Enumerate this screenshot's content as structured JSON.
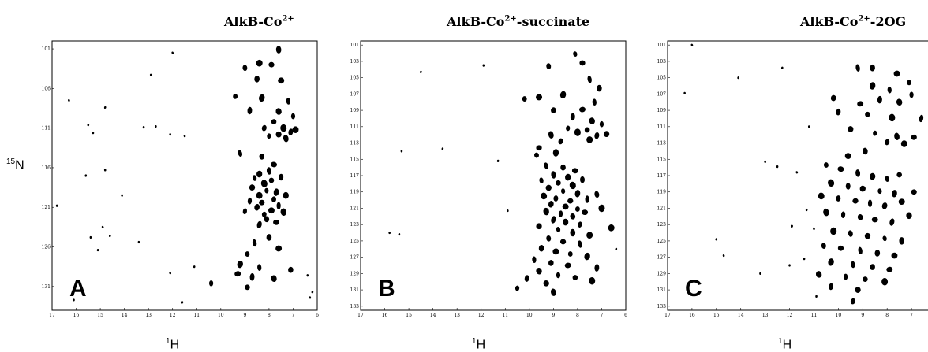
{
  "chart_data": [
    {
      "type": "scatter",
      "title": "AlkB-Co",
      "title_sup": "2+",
      "panel_label": "A",
      "xlabel": "H",
      "xlabel_sup": "1",
      "ylabel": "N",
      "ylabel_sup": "15",
      "xlim": [
        17,
        6
      ],
      "ylim": [
        100,
        134
      ],
      "x_ticks": [
        17,
        16,
        15,
        14,
        13,
        12,
        11,
        10,
        9,
        8,
        7,
        6
      ],
      "y_ticks": [
        101,
        106,
        111,
        116,
        121,
        126,
        131
      ],
      "peaks": [
        {
          "x": 12.0,
          "y": 101.5
        },
        {
          "x": 7.6,
          "y": 101.1
        },
        {
          "x": 8.4,
          "y": 102.8
        },
        {
          "x": 9.0,
          "y": 103.4
        },
        {
          "x": 7.9,
          "y": 103.0
        },
        {
          "x": 12.9,
          "y": 104.3
        },
        {
          "x": 8.5,
          "y": 104.8
        },
        {
          "x": 7.5,
          "y": 105.0
        },
        {
          "x": 9.4,
          "y": 107.0
        },
        {
          "x": 8.3,
          "y": 107.2
        },
        {
          "x": 7.2,
          "y": 107.6
        },
        {
          "x": 14.8,
          "y": 108.4
        },
        {
          "x": 16.3,
          "y": 107.5
        },
        {
          "x": 8.8,
          "y": 108.8
        },
        {
          "x": 7.6,
          "y": 108.9
        },
        {
          "x": 7.0,
          "y": 109.5
        },
        {
          "x": 7.8,
          "y": 110.2
        },
        {
          "x": 7.4,
          "y": 111.0
        },
        {
          "x": 7.1,
          "y": 111.5
        },
        {
          "x": 7.6,
          "y": 111.8
        },
        {
          "x": 8.0,
          "y": 112.0
        },
        {
          "x": 7.3,
          "y": 112.3
        },
        {
          "x": 6.9,
          "y": 111.2
        },
        {
          "x": 8.2,
          "y": 111.0
        },
        {
          "x": 12.1,
          "y": 111.8
        },
        {
          "x": 12.7,
          "y": 110.8
        },
        {
          "x": 15.3,
          "y": 111.6
        },
        {
          "x": 15.5,
          "y": 110.6
        },
        {
          "x": 11.5,
          "y": 112.0
        },
        {
          "x": 13.2,
          "y": 110.9
        },
        {
          "x": 9.2,
          "y": 114.2
        },
        {
          "x": 8.3,
          "y": 114.6
        },
        {
          "x": 7.8,
          "y": 115.6
        },
        {
          "x": 8.0,
          "y": 116.4
        },
        {
          "x": 8.4,
          "y": 116.8
        },
        {
          "x": 8.6,
          "y": 117.3
        },
        {
          "x": 7.9,
          "y": 117.6
        },
        {
          "x": 8.2,
          "y": 118.0
        },
        {
          "x": 7.5,
          "y": 117.2
        },
        {
          "x": 8.7,
          "y": 118.5
        },
        {
          "x": 8.1,
          "y": 118.9
        },
        {
          "x": 7.7,
          "y": 119.1
        },
        {
          "x": 8.4,
          "y": 119.5
        },
        {
          "x": 7.8,
          "y": 120.0
        },
        {
          "x": 8.3,
          "y": 120.4
        },
        {
          "x": 7.6,
          "y": 120.8
        },
        {
          "x": 8.5,
          "y": 121.0
        },
        {
          "x": 7.9,
          "y": 121.4
        },
        {
          "x": 8.2,
          "y": 121.9
        },
        {
          "x": 7.4,
          "y": 121.6
        },
        {
          "x": 8.8,
          "y": 120.2
        },
        {
          "x": 8.1,
          "y": 122.5
        },
        {
          "x": 7.7,
          "y": 122.9
        },
        {
          "x": 8.4,
          "y": 123.2
        },
        {
          "x": 7.3,
          "y": 119.5
        },
        {
          "x": 9.0,
          "y": 121.5
        },
        {
          "x": 14.8,
          "y": 116.3
        },
        {
          "x": 15.6,
          "y": 117.0
        },
        {
          "x": 14.1,
          "y": 119.5
        },
        {
          "x": 16.8,
          "y": 120.8
        },
        {
          "x": 14.9,
          "y": 123.5
        },
        {
          "x": 15.4,
          "y": 124.8
        },
        {
          "x": 14.6,
          "y": 124.6
        },
        {
          "x": 13.4,
          "y": 125.4
        },
        {
          "x": 15.1,
          "y": 126.4
        },
        {
          "x": 8.6,
          "y": 125.5
        },
        {
          "x": 8.0,
          "y": 124.8
        },
        {
          "x": 7.6,
          "y": 126.2
        },
        {
          "x": 8.9,
          "y": 126.9
        },
        {
          "x": 9.2,
          "y": 128.2
        },
        {
          "x": 8.4,
          "y": 128.6
        },
        {
          "x": 7.1,
          "y": 128.9
        },
        {
          "x": 9.3,
          "y": 129.4
        },
        {
          "x": 8.7,
          "y": 129.8
        },
        {
          "x": 7.8,
          "y": 130.0
        },
        {
          "x": 10.4,
          "y": 130.6
        },
        {
          "x": 8.9,
          "y": 131.1
        },
        {
          "x": 6.4,
          "y": 129.6
        },
        {
          "x": 6.2,
          "y": 131.7
        },
        {
          "x": 6.3,
          "y": 132.4
        },
        {
          "x": 11.1,
          "y": 128.5
        },
        {
          "x": 12.1,
          "y": 129.3
        },
        {
          "x": 16.1,
          "y": 132.7
        },
        {
          "x": 11.6,
          "y": 133.0
        }
      ]
    },
    {
      "type": "scatter",
      "title": "AlkB-Co",
      "title_sup": "2+",
      "title_suffix": "-succinate",
      "panel_label": "B",
      "xlabel": "H",
      "xlabel_sup": "1",
      "xlim": [
        17,
        6
      ],
      "ylim": [
        100.5,
        133.5
      ],
      "x_ticks": [
        17,
        16,
        15,
        14,
        13,
        12,
        11,
        10,
        9,
        8,
        7,
        6
      ],
      "y_ticks": [
        101,
        103,
        105,
        107,
        109,
        111,
        113,
        115,
        117,
        119,
        121,
        123,
        125,
        127,
        129,
        131,
        133
      ],
      "peaks": [
        {
          "x": 8.1,
          "y": 102.1
        },
        {
          "x": 11.9,
          "y": 103.5
        },
        {
          "x": 14.5,
          "y": 104.3
        },
        {
          "x": 9.2,
          "y": 103.6
        },
        {
          "x": 7.8,
          "y": 103.2
        },
        {
          "x": 7.5,
          "y": 105.2
        },
        {
          "x": 7.1,
          "y": 106.3
        },
        {
          "x": 9.6,
          "y": 107.4
        },
        {
          "x": 10.2,
          "y": 107.6
        },
        {
          "x": 8.6,
          "y": 107.1
        },
        {
          "x": 7.3,
          "y": 108.0
        },
        {
          "x": 9.0,
          "y": 109.0
        },
        {
          "x": 7.8,
          "y": 108.9
        },
        {
          "x": 8.2,
          "y": 109.8
        },
        {
          "x": 7.4,
          "y": 110.3
        },
        {
          "x": 7.0,
          "y": 110.7
        },
        {
          "x": 7.6,
          "y": 111.4
        },
        {
          "x": 8.0,
          "y": 111.7
        },
        {
          "x": 7.2,
          "y": 112.1
        },
        {
          "x": 6.8,
          "y": 111.9
        },
        {
          "x": 8.4,
          "y": 111.2
        },
        {
          "x": 9.1,
          "y": 112.0
        },
        {
          "x": 7.5,
          "y": 112.6
        },
        {
          "x": 8.7,
          "y": 112.8
        },
        {
          "x": 9.6,
          "y": 113.6
        },
        {
          "x": 13.6,
          "y": 113.7
        },
        {
          "x": 15.3,
          "y": 114.0
        },
        {
          "x": 11.3,
          "y": 115.2
        },
        {
          "x": 9.7,
          "y": 114.5
        },
        {
          "x": 8.9,
          "y": 114.2
        },
        {
          "x": 9.3,
          "y": 115.8
        },
        {
          "x": 8.6,
          "y": 116.0
        },
        {
          "x": 8.1,
          "y": 116.4
        },
        {
          "x": 9.0,
          "y": 116.9
        },
        {
          "x": 8.4,
          "y": 117.2
        },
        {
          "x": 9.5,
          "y": 117.6
        },
        {
          "x": 8.8,
          "y": 117.9
        },
        {
          "x": 8.2,
          "y": 118.2
        },
        {
          "x": 7.8,
          "y": 117.5
        },
        {
          "x": 9.2,
          "y": 118.5
        },
        {
          "x": 8.6,
          "y": 118.9
        },
        {
          "x": 8.0,
          "y": 119.2
        },
        {
          "x": 9.4,
          "y": 119.5
        },
        {
          "x": 8.9,
          "y": 119.8
        },
        {
          "x": 8.3,
          "y": 120.1
        },
        {
          "x": 7.6,
          "y": 119.9
        },
        {
          "x": 9.1,
          "y": 120.5
        },
        {
          "x": 8.5,
          "y": 120.8
        },
        {
          "x": 8.0,
          "y": 121.1
        },
        {
          "x": 9.3,
          "y": 121.4
        },
        {
          "x": 8.7,
          "y": 121.7
        },
        {
          "x": 8.2,
          "y": 122.0
        },
        {
          "x": 7.7,
          "y": 121.5
        },
        {
          "x": 9.0,
          "y": 122.4
        },
        {
          "x": 8.5,
          "y": 122.7
        },
        {
          "x": 7.9,
          "y": 123.0
        },
        {
          "x": 10.9,
          "y": 121.3
        },
        {
          "x": 7.0,
          "y": 121.0
        },
        {
          "x": 7.2,
          "y": 119.3
        },
        {
          "x": 9.6,
          "y": 123.2
        },
        {
          "x": 8.8,
          "y": 123.6
        },
        {
          "x": 8.2,
          "y": 124.0
        },
        {
          "x": 7.5,
          "y": 124.3
        },
        {
          "x": 9.2,
          "y": 124.7
        },
        {
          "x": 8.6,
          "y": 125.1
        },
        {
          "x": 7.9,
          "y": 125.4
        },
        {
          "x": 9.5,
          "y": 125.9
        },
        {
          "x": 8.9,
          "y": 126.3
        },
        {
          "x": 8.3,
          "y": 126.6
        },
        {
          "x": 7.6,
          "y": 126.9
        },
        {
          "x": 9.8,
          "y": 127.3
        },
        {
          "x": 9.1,
          "y": 127.7
        },
        {
          "x": 8.4,
          "y": 128.0
        },
        {
          "x": 7.2,
          "y": 128.3
        },
        {
          "x": 9.6,
          "y": 128.7
        },
        {
          "x": 8.8,
          "y": 129.2
        },
        {
          "x": 8.1,
          "y": 129.5
        },
        {
          "x": 7.4,
          "y": 129.9
        },
        {
          "x": 10.1,
          "y": 129.6
        },
        {
          "x": 9.3,
          "y": 130.2
        },
        {
          "x": 10.5,
          "y": 130.8
        },
        {
          "x": 9.0,
          "y": 131.3
        },
        {
          "x": 6.6,
          "y": 123.4
        },
        {
          "x": 6.4,
          "y": 126.0
        },
        {
          "x": 15.8,
          "y": 124.0
        },
        {
          "x": 15.4,
          "y": 124.2
        }
      ]
    },
    {
      "type": "scatter",
      "title": "AlkB-Co",
      "title_sup": "2+",
      "title_suffix": "-2OG",
      "panel_label": "C",
      "xlabel": "H",
      "xlabel_sup": "1",
      "xlim": [
        17,
        6
      ],
      "ylim": [
        100.5,
        133.5
      ],
      "x_ticks": [
        17,
        16,
        15,
        14,
        13,
        12,
        11,
        10,
        9,
        8,
        7
      ],
      "y_ticks": [
        101,
        103,
        105,
        107,
        109,
        111,
        113,
        115,
        117,
        119,
        121,
        123,
        125,
        127,
        129,
        131,
        133
      ],
      "peaks": [
        {
          "x": 16.0,
          "y": 101.0
        },
        {
          "x": 16.3,
          "y": 106.9
        },
        {
          "x": 14.1,
          "y": 105.0
        },
        {
          "x": 11.2,
          "y": 111.0
        },
        {
          "x": 12.3,
          "y": 103.8
        },
        {
          "x": 9.2,
          "y": 103.8
        },
        {
          "x": 8.6,
          "y": 103.8
        },
        {
          "x": 7.6,
          "y": 104.5
        },
        {
          "x": 7.1,
          "y": 105.6
        },
        {
          "x": 8.6,
          "y": 106.0
        },
        {
          "x": 7.9,
          "y": 106.5
        },
        {
          "x": 10.2,
          "y": 107.5
        },
        {
          "x": 9.1,
          "y": 108.2
        },
        {
          "x": 8.3,
          "y": 107.7
        },
        {
          "x": 7.5,
          "y": 108.0
        },
        {
          "x": 7.0,
          "y": 107.1
        },
        {
          "x": 8.8,
          "y": 109.5
        },
        {
          "x": 7.8,
          "y": 109.9
        },
        {
          "x": 10.0,
          "y": 109.2
        },
        {
          "x": 9.5,
          "y": 111.3
        },
        {
          "x": 8.5,
          "y": 111.8
        },
        {
          "x": 7.6,
          "y": 112.2
        },
        {
          "x": 7.3,
          "y": 113.1
        },
        {
          "x": 8.0,
          "y": 112.9
        },
        {
          "x": 6.9,
          "y": 112.3
        },
        {
          "x": 6.6,
          "y": 110.0
        },
        {
          "x": 8.9,
          "y": 114.0
        },
        {
          "x": 9.6,
          "y": 114.6
        },
        {
          "x": 10.5,
          "y": 115.7
        },
        {
          "x": 12.5,
          "y": 115.9
        },
        {
          "x": 11.7,
          "y": 116.6
        },
        {
          "x": 13.0,
          "y": 115.3
        },
        {
          "x": 9.9,
          "y": 116.2
        },
        {
          "x": 9.2,
          "y": 116.7
        },
        {
          "x": 8.6,
          "y": 117.1
        },
        {
          "x": 8.0,
          "y": 117.4
        },
        {
          "x": 7.5,
          "y": 116.9
        },
        {
          "x": 10.3,
          "y": 117.9
        },
        {
          "x": 9.6,
          "y": 118.3
        },
        {
          "x": 9.0,
          "y": 118.6
        },
        {
          "x": 8.3,
          "y": 118.9
        },
        {
          "x": 7.7,
          "y": 119.2
        },
        {
          "x": 10.7,
          "y": 119.5
        },
        {
          "x": 10.0,
          "y": 119.8
        },
        {
          "x": 9.3,
          "y": 120.1
        },
        {
          "x": 8.7,
          "y": 120.4
        },
        {
          "x": 8.1,
          "y": 120.7
        },
        {
          "x": 7.4,
          "y": 120.2
        },
        {
          "x": 11.3,
          "y": 121.2
        },
        {
          "x": 10.5,
          "y": 121.5
        },
        {
          "x": 9.8,
          "y": 121.8
        },
        {
          "x": 9.1,
          "y": 122.1
        },
        {
          "x": 8.5,
          "y": 122.4
        },
        {
          "x": 7.8,
          "y": 122.7
        },
        {
          "x": 7.1,
          "y": 121.9
        },
        {
          "x": 11.9,
          "y": 123.2
        },
        {
          "x": 11.0,
          "y": 123.5
        },
        {
          "x": 10.2,
          "y": 123.8
        },
        {
          "x": 9.5,
          "y": 124.1
        },
        {
          "x": 8.8,
          "y": 124.4
        },
        {
          "x": 8.1,
          "y": 124.7
        },
        {
          "x": 7.4,
          "y": 125.0
        },
        {
          "x": 15.0,
          "y": 124.8
        },
        {
          "x": 10.6,
          "y": 125.6
        },
        {
          "x": 9.9,
          "y": 125.9
        },
        {
          "x": 9.1,
          "y": 126.2
        },
        {
          "x": 8.4,
          "y": 126.5
        },
        {
          "x": 7.7,
          "y": 126.8
        },
        {
          "x": 11.4,
          "y": 127.2
        },
        {
          "x": 10.3,
          "y": 127.6
        },
        {
          "x": 9.4,
          "y": 127.9
        },
        {
          "x": 8.6,
          "y": 128.2
        },
        {
          "x": 7.9,
          "y": 128.5
        },
        {
          "x": 12.0,
          "y": 128.0
        },
        {
          "x": 10.8,
          "y": 129.1
        },
        {
          "x": 9.7,
          "y": 129.4
        },
        {
          "x": 8.9,
          "y": 129.7
        },
        {
          "x": 8.1,
          "y": 130.0
        },
        {
          "x": 10.3,
          "y": 130.6
        },
        {
          "x": 9.2,
          "y": 131.0
        },
        {
          "x": 13.2,
          "y": 129.0
        },
        {
          "x": 14.7,
          "y": 126.8
        },
        {
          "x": 10.9,
          "y": 131.8
        },
        {
          "x": 9.4,
          "y": 132.4
        },
        {
          "x": 6.9,
          "y": 119.0
        }
      ]
    }
  ]
}
